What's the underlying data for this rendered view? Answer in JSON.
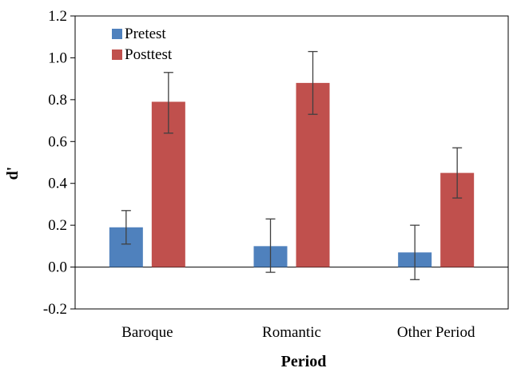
{
  "chart_data": {
    "type": "bar",
    "title": "",
    "xlabel": "Period",
    "ylabel": "d'",
    "categories": [
      "Baroque",
      "Romantic",
      "Other Period"
    ],
    "series": [
      {
        "name": "Pretest",
        "color": "#4f81bd",
        "values": [
          0.19,
          0.1,
          0.07
        ],
        "error_low": [
          0.11,
          -0.025,
          -0.06
        ],
        "error_high": [
          0.27,
          0.23,
          0.2
        ]
      },
      {
        "name": "Posttest",
        "color": "#c0504d",
        "values": [
          0.79,
          0.88,
          0.45
        ],
        "error_low": [
          0.64,
          0.73,
          0.33
        ],
        "error_high": [
          0.93,
          1.03,
          0.57
        ]
      }
    ],
    "ylim": [
      -0.2,
      1.2
    ],
    "yticks": [
      "-0.2",
      "0.0",
      "0.2",
      "0.4",
      "0.6",
      "0.8",
      "1.0",
      "1.2"
    ],
    "grid": false,
    "legend_position": "top-left"
  }
}
